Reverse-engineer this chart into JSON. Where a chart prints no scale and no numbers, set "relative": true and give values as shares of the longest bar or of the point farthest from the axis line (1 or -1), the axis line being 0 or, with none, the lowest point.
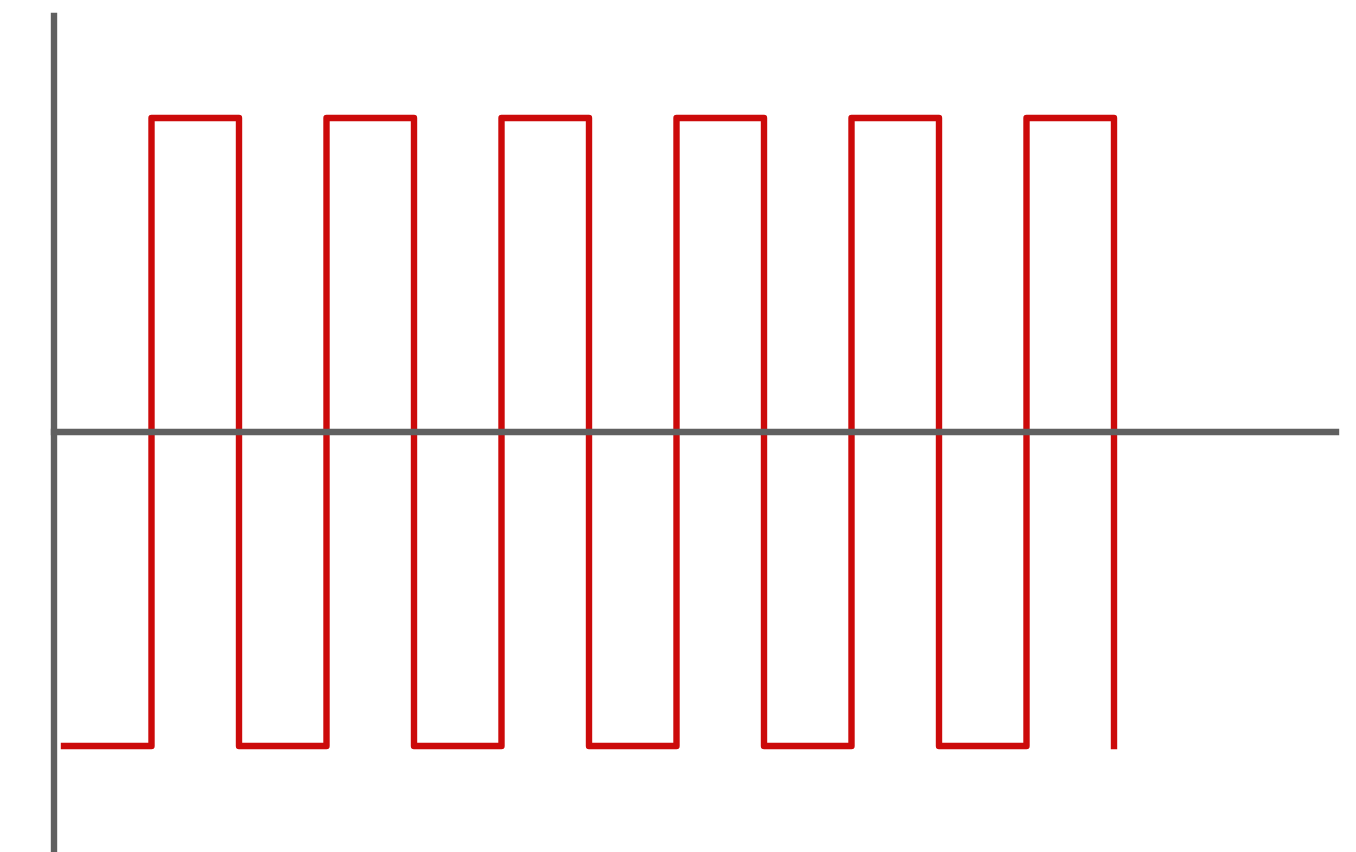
{
  "chart_data": {
    "type": "step",
    "relative": true,
    "categories": [
      null,
      null,
      null,
      null,
      null,
      null,
      null,
      null,
      null,
      null,
      null,
      null,
      null
    ],
    "series": [
      {
        "color": "#cc0a0a",
        "values": [
          -1,
          1,
          -1,
          1,
          -1,
          1,
          -1,
          1,
          -1,
          1,
          -1,
          1,
          -1
        ]
      }
    ],
    "grid": false,
    "legend": false,
    "marker": "none",
    "line_style": "solid"
  }
}
